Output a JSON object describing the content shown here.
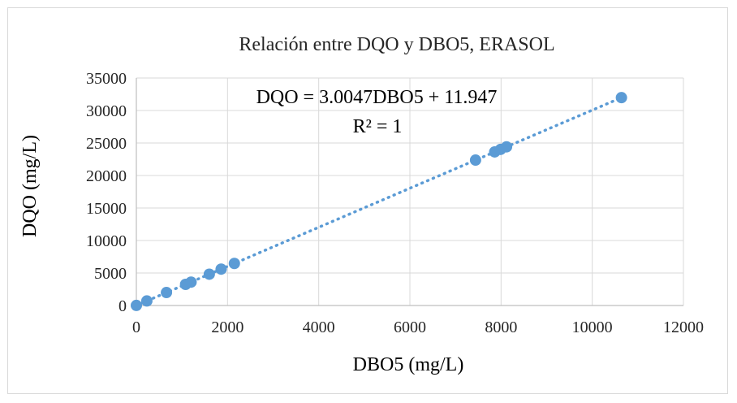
{
  "chart_data": {
    "type": "scatter",
    "title": "Relación entre DQO y DBO5, ERASOL",
    "xlabel": "DBO5 (mg/L)",
    "ylabel": "DQO (mg/L)",
    "xlim": [
      0,
      12000
    ],
    "ylim": [
      0,
      35000
    ],
    "x_ticks": [
      0,
      2000,
      4000,
      6000,
      8000,
      10000,
      12000
    ],
    "y_ticks": [
      0,
      5000,
      10000,
      15000,
      20000,
      25000,
      30000,
      35000
    ],
    "grid": true,
    "legend": "none",
    "series": [
      {
        "color": "#5b9bd5",
        "points": [
          {
            "x": 0,
            "y": 12
          },
          {
            "x": 230,
            "y": 700
          },
          {
            "x": 660,
            "y": 1995
          },
          {
            "x": 1080,
            "y": 3250
          },
          {
            "x": 1200,
            "y": 3600
          },
          {
            "x": 1600,
            "y": 4820
          },
          {
            "x": 1860,
            "y": 5600
          },
          {
            "x": 2150,
            "y": 6470
          },
          {
            "x": 7440,
            "y": 22370
          },
          {
            "x": 7860,
            "y": 23630
          },
          {
            "x": 7990,
            "y": 24020
          },
          {
            "x": 8120,
            "y": 24410
          },
          {
            "x": 10640,
            "y": 31980
          }
        ],
        "trendline": {
          "type": "linear",
          "slope": 3.0047,
          "intercept": 11.947,
          "style": "dotted",
          "color": "#5b9bd5"
        }
      }
    ],
    "annotations": {
      "equation": "DQO = 3.0047DBO5 + 11.947",
      "r_squared": "R² = 1"
    }
  }
}
